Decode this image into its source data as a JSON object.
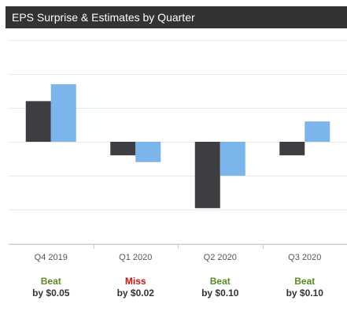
{
  "header": {
    "title": "EPS Surprise & Estimates by Quarter"
  },
  "colors": {
    "actual": "#3d3d42",
    "estimate": "#7cb5ec",
    "beat": "#5b8a1e",
    "miss": "#cc1111",
    "grid": "#e6e6e6"
  },
  "chart_data": {
    "type": "bar",
    "title": "EPS Surprise & Estimates by Quarter",
    "categories": [
      "Q4 2019",
      "Q1 2020",
      "Q2 2020",
      "Q3 2020"
    ],
    "series": [
      {
        "values": [
          0.6,
          -0.2,
          -0.98,
          -0.2
        ]
      },
      {
        "values": [
          0.85,
          -0.3,
          -0.5,
          0.3
        ]
      }
    ],
    "ylim": [
      -1.5,
      1.5
    ],
    "grid": true,
    "results": [
      {
        "verdict": "Beat",
        "amount": "by $0.05",
        "status": "beat"
      },
      {
        "verdict": "Miss",
        "amount": "by $0.02",
        "status": "miss"
      },
      {
        "verdict": "Beat",
        "amount": "by $0.10",
        "status": "beat"
      },
      {
        "verdict": "Beat",
        "amount": "by $0.10",
        "status": "beat"
      }
    ]
  }
}
